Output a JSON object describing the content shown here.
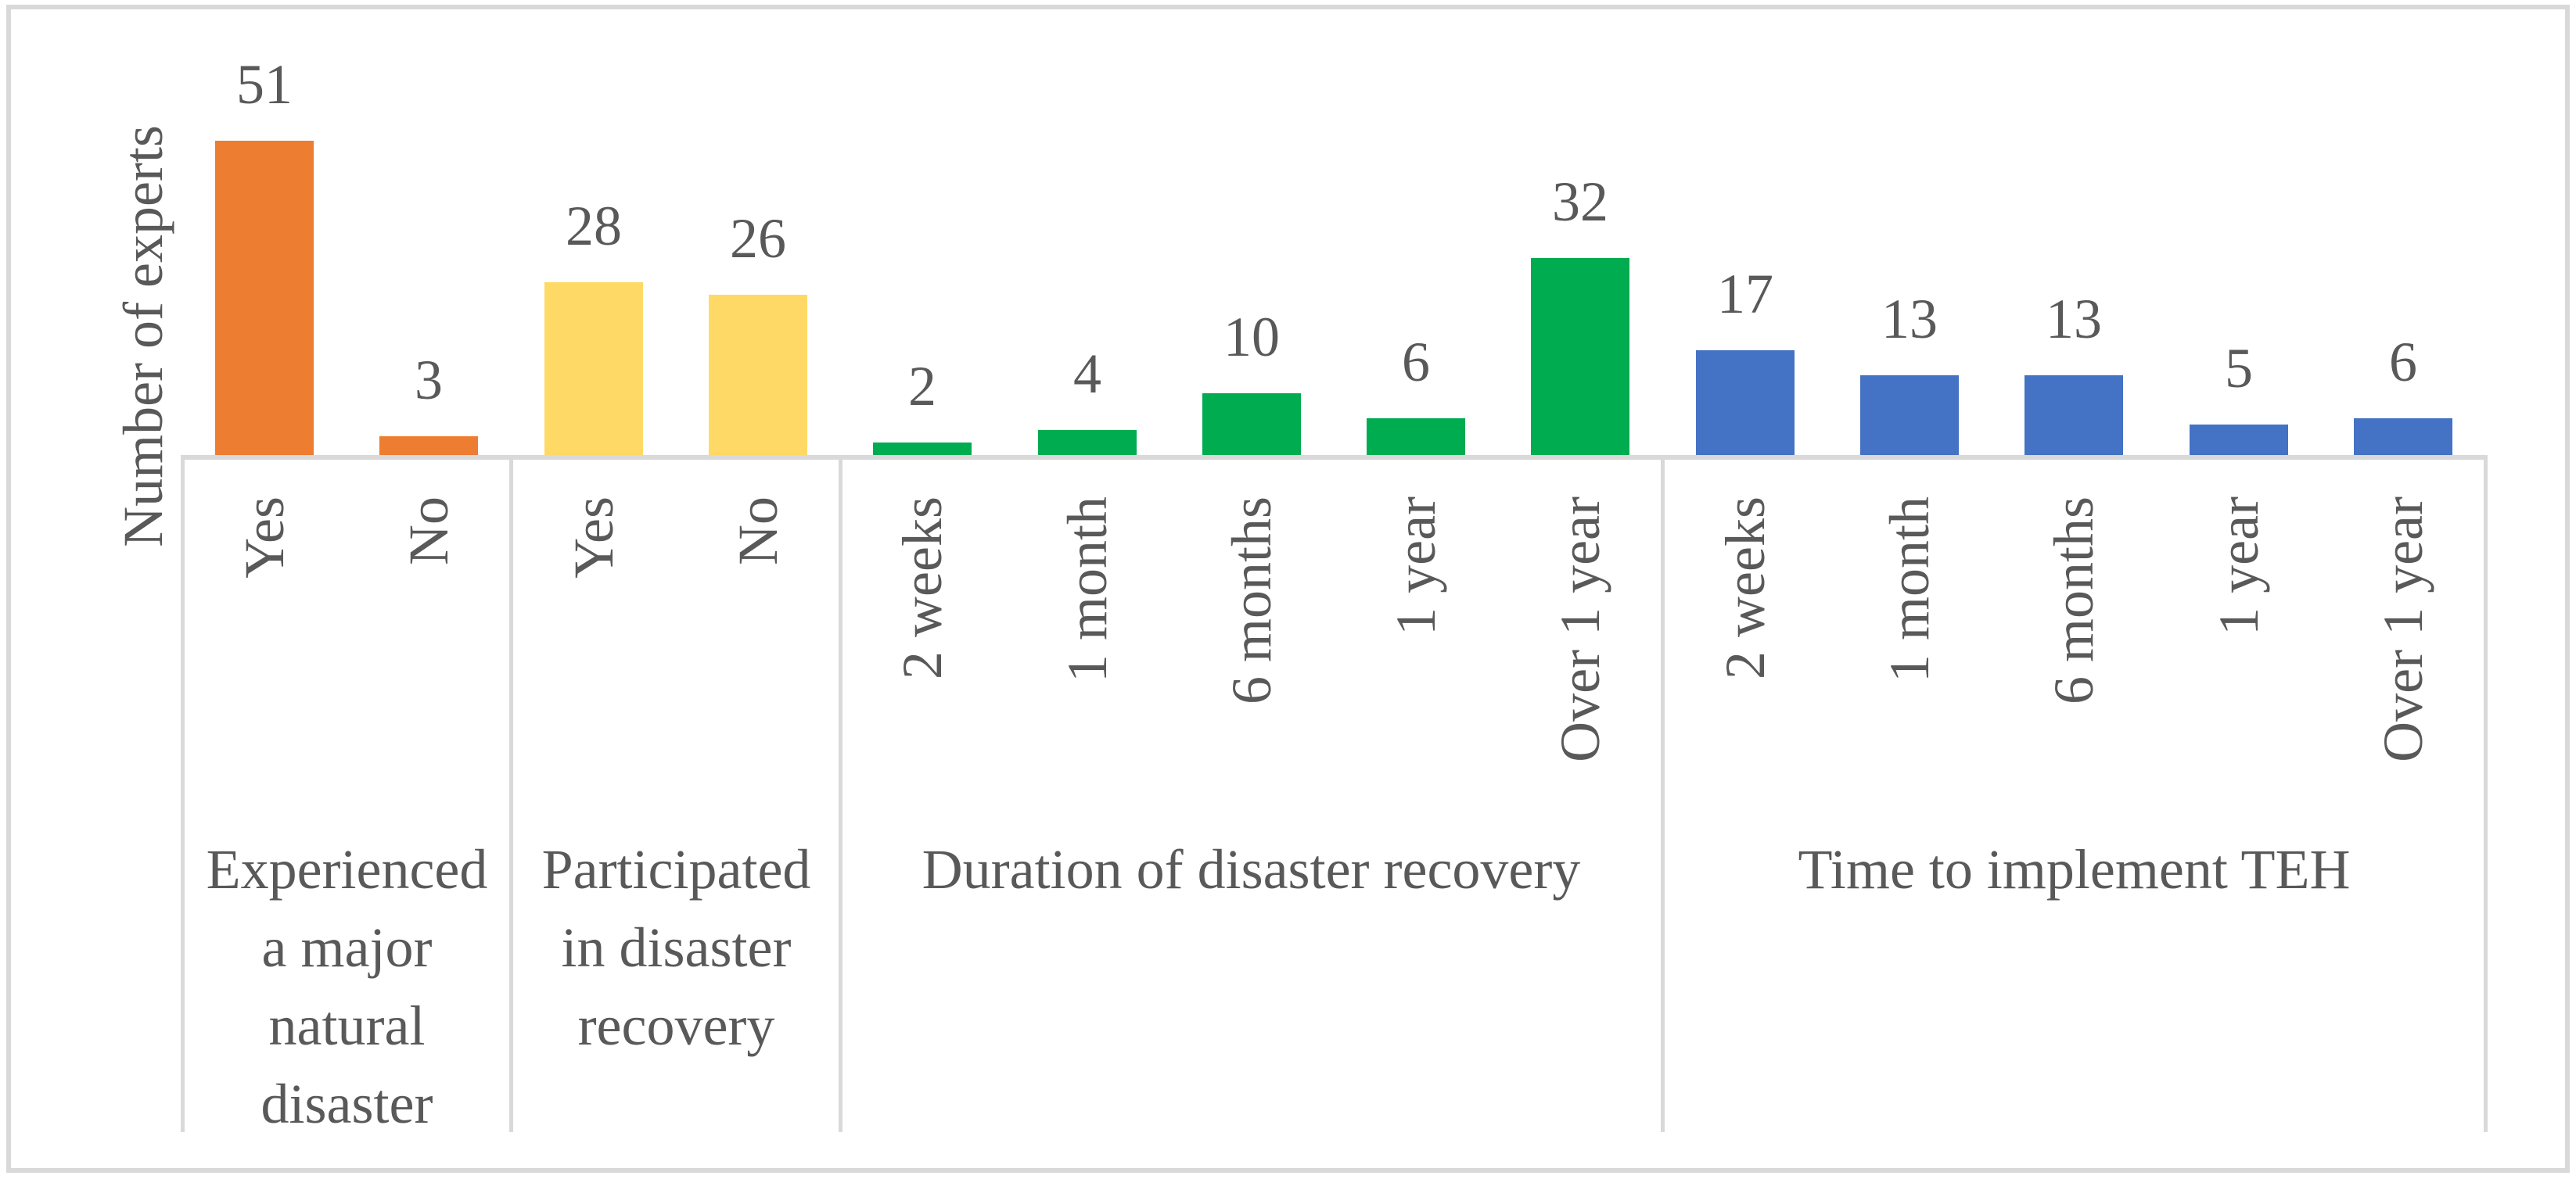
{
  "figure": {
    "y_axis_title": "Number of experts",
    "colors": {
      "group1_bar": "#ED7D31",
      "group2_bar": "#FFD966",
      "group3_bar": "#00AC50",
      "group4_bar": "#4472C4",
      "axis_line": "#D9D9D9",
      "text": "#595959",
      "background": "#FFFFFF"
    }
  },
  "chart_data": {
    "type": "bar",
    "title": "",
    "xlabel": "",
    "ylabel": "Number of experts",
    "ylim": [
      0,
      51
    ],
    "grid": false,
    "data_labels": true,
    "legend": "none",
    "groups": [
      {
        "label": "Experienced a major natural disaster",
        "label_lines": [
          "Experienced",
          "a major",
          "natural",
          "disaster"
        ],
        "color": "#ED7D31",
        "categories": [
          "Yes",
          "No"
        ],
        "values": [
          51,
          3
        ]
      },
      {
        "label": "Participated in disaster recovery",
        "label_lines": [
          "Participated",
          "in disaster",
          "recovery"
        ],
        "color": "#FFD966",
        "categories": [
          "Yes",
          "No"
        ],
        "values": [
          28,
          26
        ]
      },
      {
        "label": "Duration of disaster recovery",
        "label_lines": [
          "Duration of disaster recovery"
        ],
        "color": "#00AC50",
        "categories": [
          "2 weeks",
          "1 month",
          "6 months",
          "1 year",
          "Over 1 year"
        ],
        "values": [
          2,
          4,
          10,
          6,
          32
        ]
      },
      {
        "label": "Time to implement TEH",
        "label_lines": [
          "Time to implement TEH"
        ],
        "color": "#4472C4",
        "categories": [
          "2 weeks",
          "1 month",
          "6 months",
          "1 year",
          "Over 1 year"
        ],
        "values": [
          17,
          13,
          13,
          5,
          6
        ]
      }
    ]
  }
}
